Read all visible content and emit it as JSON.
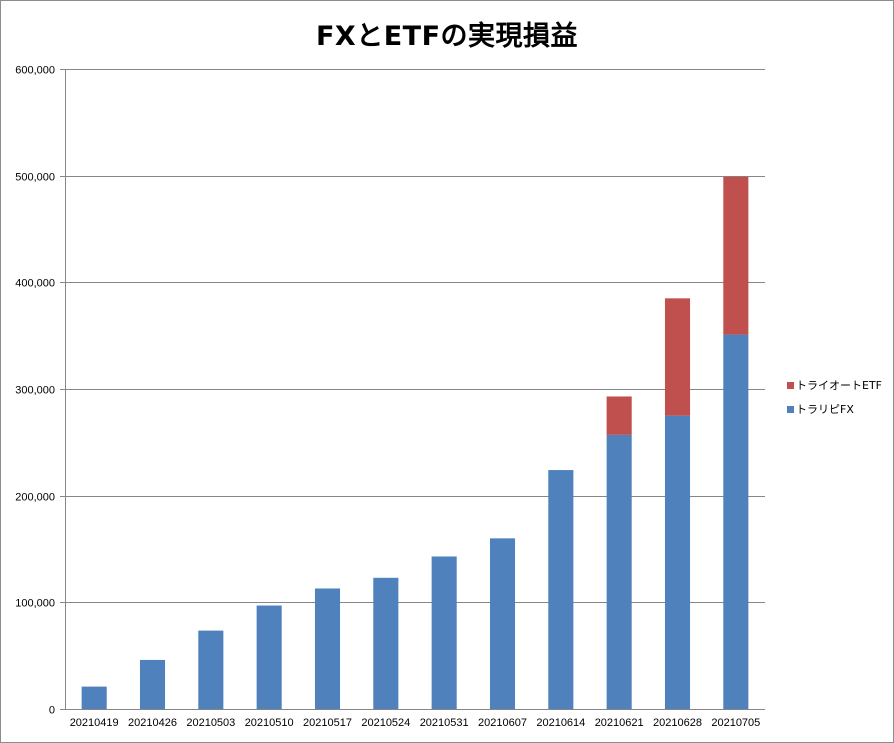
{
  "chart_data": {
    "type": "bar",
    "stacked": true,
    "title": "FXとETFの実現損益",
    "xlabel": "",
    "ylabel": "",
    "categories": [
      "20210419",
      "20210426",
      "20210503",
      "20210510",
      "20210517",
      "20210524",
      "20210531",
      "20210607",
      "20210614",
      "20210621",
      "20210628",
      "20210705"
    ],
    "series": [
      {
        "name": "トラリピFX",
        "color": "#4f81bd",
        "values": [
          21000,
          46000,
          73500,
          97000,
          113000,
          123000,
          143000,
          160000,
          224000,
          257000,
          275000,
          351000
        ]
      },
      {
        "name": "トライオートETF",
        "color": "#c0504d",
        "values": [
          0,
          0,
          0,
          0,
          0,
          0,
          0,
          0,
          0,
          36000,
          110000,
          148000
        ]
      }
    ],
    "ylim": [
      0,
      600000
    ],
    "yticks": [
      0,
      100000,
      200000,
      300000,
      400000,
      500000,
      600000
    ],
    "ytick_labels": [
      "0",
      "100,000",
      "200,000",
      "300,000",
      "400,000",
      "500,000",
      "600,000"
    ],
    "grid": true,
    "legend_position": "right",
    "legend_order": [
      "トライオートETF",
      "トラリピFX"
    ]
  }
}
